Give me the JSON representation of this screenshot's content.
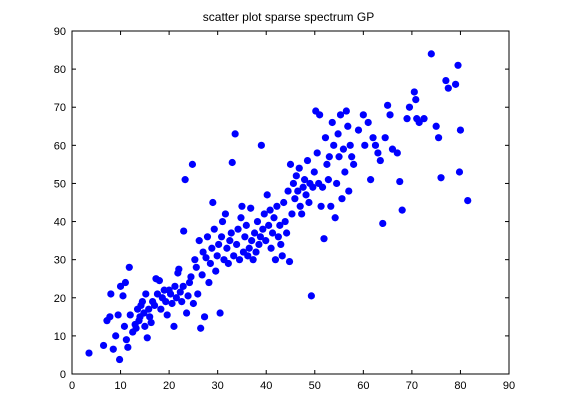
{
  "chart_data": {
    "type": "scatter",
    "title": "scatter plot sparse spectrum GP",
    "xlabel": "",
    "ylabel": "",
    "xlim": [
      0,
      90
    ],
    "ylim": [
      0,
      90
    ],
    "x_ticks": [
      0,
      10,
      20,
      30,
      40,
      50,
      60,
      70,
      80,
      90
    ],
    "y_ticks": [
      0,
      10,
      20,
      30,
      40,
      50,
      60,
      70,
      80,
      90
    ],
    "grid": false,
    "legend": false,
    "marker_color": "#0000ff",
    "series": [
      {
        "points": [
          [
            3.5,
            5.5
          ],
          [
            6.5,
            7.5
          ],
          [
            7.2,
            14
          ],
          [
            7.8,
            15
          ],
          [
            8,
            21
          ],
          [
            8.5,
            6.5
          ],
          [
            9,
            10
          ],
          [
            9.5,
            15.5
          ],
          [
            9.8,
            3.8
          ],
          [
            10,
            23
          ],
          [
            10.5,
            20.5
          ],
          [
            10.8,
            12.5
          ],
          [
            11,
            24
          ],
          [
            11.2,
            9
          ],
          [
            11.5,
            7
          ],
          [
            11.8,
            28
          ],
          [
            12,
            15.5
          ],
          [
            12.5,
            11
          ],
          [
            13,
            13
          ],
          [
            13.2,
            12
          ],
          [
            13.5,
            17
          ],
          [
            13.8,
            14
          ],
          [
            14,
            15
          ],
          [
            14.2,
            18
          ],
          [
            14.5,
            19
          ],
          [
            14.8,
            16
          ],
          [
            15,
            12.5
          ],
          [
            15.2,
            21
          ],
          [
            15.5,
            9.5
          ],
          [
            15.8,
            17
          ],
          [
            16,
            15
          ],
          [
            16.3,
            13.5
          ],
          [
            16.6,
            19
          ],
          [
            17,
            18
          ],
          [
            17.3,
            25
          ],
          [
            17.6,
            21
          ],
          [
            18,
            24.5
          ],
          [
            18.3,
            17
          ],
          [
            18.6,
            20
          ],
          [
            19,
            22
          ],
          [
            19.3,
            19
          ],
          [
            19.6,
            15.5
          ],
          [
            20,
            22
          ],
          [
            20.3,
            21
          ],
          [
            20.6,
            18.5
          ],
          [
            21,
            12.5
          ],
          [
            21.2,
            23
          ],
          [
            21.5,
            20
          ],
          [
            21.8,
            26.5
          ],
          [
            22,
            27.5
          ],
          [
            22.3,
            21.5
          ],
          [
            22.6,
            19
          ],
          [
            22.9,
            23
          ],
          [
            23,
            37.5
          ],
          [
            23.3,
            51
          ],
          [
            23.6,
            16
          ],
          [
            23.9,
            20.5
          ],
          [
            24.2,
            24
          ],
          [
            24.5,
            25.5
          ],
          [
            24.8,
            55
          ],
          [
            25,
            18.5
          ],
          [
            25.3,
            30
          ],
          [
            25.6,
            28
          ],
          [
            25.9,
            21
          ],
          [
            26.2,
            35
          ],
          [
            26.5,
            12
          ],
          [
            26.8,
            26
          ],
          [
            27,
            32
          ],
          [
            27.3,
            15
          ],
          [
            27.6,
            30.5
          ],
          [
            27.9,
            36
          ],
          [
            28.2,
            24
          ],
          [
            28.5,
            29
          ],
          [
            28.8,
            33
          ],
          [
            29,
            45
          ],
          [
            29.3,
            38
          ],
          [
            29.6,
            27
          ],
          [
            29.9,
            31
          ],
          [
            30.2,
            34
          ],
          [
            30.5,
            16
          ],
          [
            30.8,
            36
          ],
          [
            31,
            40
          ],
          [
            31.3,
            30
          ],
          [
            31.6,
            42
          ],
          [
            31.9,
            33
          ],
          [
            32.2,
            29
          ],
          [
            32.5,
            35
          ],
          [
            32.8,
            37
          ],
          [
            33,
            55.5
          ],
          [
            33.3,
            31
          ],
          [
            33.6,
            63
          ],
          [
            33.9,
            34
          ],
          [
            34.2,
            38
          ],
          [
            34.5,
            30
          ],
          [
            34.8,
            41
          ],
          [
            35,
            44
          ],
          [
            35.3,
            32
          ],
          [
            35.6,
            36
          ],
          [
            35.9,
            39
          ],
          [
            36.2,
            31
          ],
          [
            36.5,
            33
          ],
          [
            36.8,
            43.5
          ],
          [
            37,
            35
          ],
          [
            37.3,
            30
          ],
          [
            37.6,
            37
          ],
          [
            37.9,
            32
          ],
          [
            38.2,
            40
          ],
          [
            38.5,
            34
          ],
          [
            38.8,
            36
          ],
          [
            39,
            60
          ],
          [
            39.3,
            38
          ],
          [
            39.6,
            42
          ],
          [
            39.9,
            35
          ],
          [
            40.2,
            47
          ],
          [
            40.5,
            39
          ],
          [
            40.8,
            43
          ],
          [
            41,
            33
          ],
          [
            41.3,
            37
          ],
          [
            41.6,
            41
          ],
          [
            41.9,
            30
          ],
          [
            42.2,
            44
          ],
          [
            42.5,
            36
          ],
          [
            42.8,
            39
          ],
          [
            43,
            34
          ],
          [
            43.3,
            31
          ],
          [
            43.6,
            45
          ],
          [
            43.9,
            40
          ],
          [
            44.2,
            37
          ],
          [
            44.5,
            48
          ],
          [
            44.8,
            29.5
          ],
          [
            45,
            55
          ],
          [
            45.3,
            42
          ],
          [
            45.6,
            50
          ],
          [
            45.9,
            46
          ],
          [
            46.2,
            52
          ],
          [
            46.5,
            48
          ],
          [
            46.8,
            54
          ],
          [
            47,
            44
          ],
          [
            47.3,
            42
          ],
          [
            47.6,
            49
          ],
          [
            47.9,
            51
          ],
          [
            48.2,
            47
          ],
          [
            48.5,
            56
          ],
          [
            48.8,
            45
          ],
          [
            49,
            50
          ],
          [
            49.3,
            20.5
          ],
          [
            49.6,
            49
          ],
          [
            49.9,
            53
          ],
          [
            50.2,
            69
          ],
          [
            50.5,
            58
          ],
          [
            50.8,
            50
          ],
          [
            51,
            68
          ],
          [
            51.3,
            44
          ],
          [
            51.6,
            49
          ],
          [
            51.9,
            35.5
          ],
          [
            52.2,
            62
          ],
          [
            52.5,
            55
          ],
          [
            52.8,
            51
          ],
          [
            53,
            57
          ],
          [
            53.3,
            44
          ],
          [
            53.6,
            66
          ],
          [
            53.9,
            60
          ],
          [
            54.2,
            41
          ],
          [
            54.5,
            50
          ],
          [
            54.8,
            63
          ],
          [
            55,
            57
          ],
          [
            55.3,
            68
          ],
          [
            55.6,
            46
          ],
          [
            55.9,
            59
          ],
          [
            56.2,
            53
          ],
          [
            56.5,
            69
          ],
          [
            56.8,
            65
          ],
          [
            57,
            48
          ],
          [
            57.3,
            60
          ],
          [
            57.6,
            57
          ],
          [
            58,
            55
          ],
          [
            59,
            64
          ],
          [
            60,
            68
          ],
          [
            60.3,
            60
          ],
          [
            61,
            66
          ],
          [
            61.5,
            51
          ],
          [
            62,
            62
          ],
          [
            62.5,
            60
          ],
          [
            63,
            58
          ],
          [
            63.5,
            56
          ],
          [
            64,
            39.5
          ],
          [
            64.5,
            62
          ],
          [
            65,
            70.5
          ],
          [
            65.5,
            68
          ],
          [
            66,
            59
          ],
          [
            67,
            58
          ],
          [
            67.5,
            50.5
          ],
          [
            68,
            43
          ],
          [
            69,
            67
          ],
          [
            69.5,
            70
          ],
          [
            70.5,
            74
          ],
          [
            70.8,
            72
          ],
          [
            71,
            67
          ],
          [
            71.5,
            66
          ],
          [
            72.5,
            67
          ],
          [
            74,
            84
          ],
          [
            75,
            65
          ],
          [
            75.5,
            62
          ],
          [
            76,
            51.5
          ],
          [
            77,
            77
          ],
          [
            77.5,
            75
          ],
          [
            79,
            76
          ],
          [
            79.5,
            81
          ],
          [
            79.8,
            53
          ],
          [
            80,
            64
          ],
          [
            81.5,
            45.5
          ]
        ]
      }
    ]
  }
}
